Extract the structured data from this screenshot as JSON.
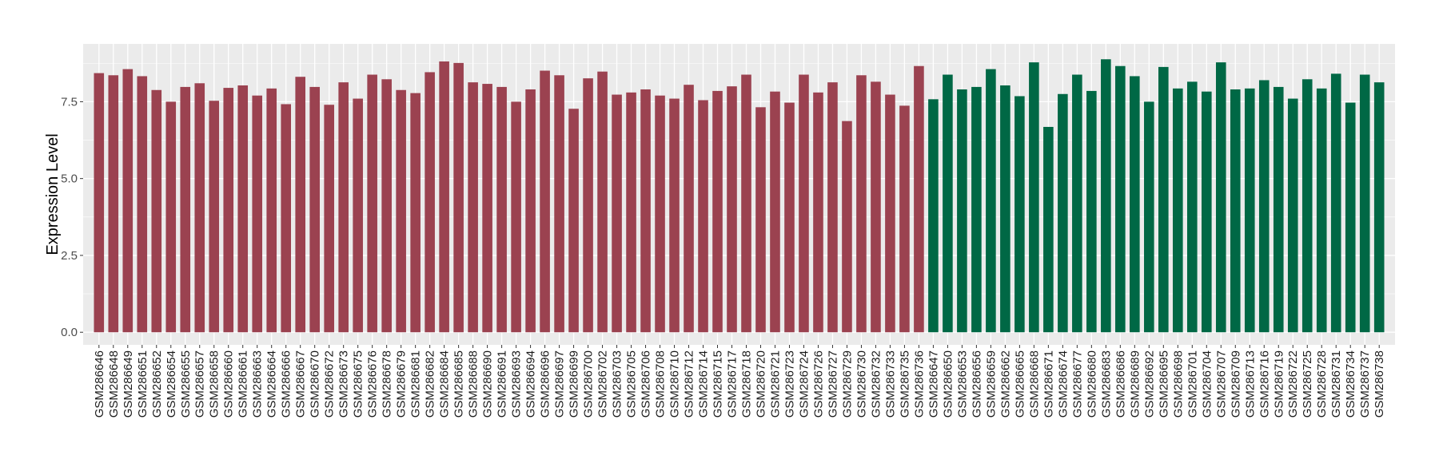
{
  "chart_data": {
    "type": "bar",
    "title": "",
    "xlabel": "",
    "ylabel": "Expression Level",
    "ylim": [
      -0.41,
      9.38
    ],
    "yticks": [
      0.0,
      2.5,
      5.0,
      7.5
    ],
    "ytick_labels": [
      "0.0",
      "2.5",
      "5.0",
      "7.5"
    ],
    "grid": true,
    "legend": "none",
    "colors": {
      "group1": "#9B4250",
      "group2": "#006845",
      "panel": "#EBEBEB",
      "grid": "#FFFFFF"
    },
    "categories": [
      "GSM286646",
      "GSM286648",
      "GSM286649",
      "GSM286651",
      "GSM286652",
      "GSM286654",
      "GSM286655",
      "GSM286657",
      "GSM286658",
      "GSM286660",
      "GSM286661",
      "GSM286663",
      "GSM286664",
      "GSM286666",
      "GSM286667",
      "GSM286670",
      "GSM286672",
      "GSM286673",
      "GSM286675",
      "GSM286676",
      "GSM286678",
      "GSM286679",
      "GSM286681",
      "GSM286682",
      "GSM286684",
      "GSM286685",
      "GSM286688",
      "GSM286690",
      "GSM286691",
      "GSM286693",
      "GSM286694",
      "GSM286696",
      "GSM286697",
      "GSM286699",
      "GSM286700",
      "GSM286702",
      "GSM286703",
      "GSM286705",
      "GSM286706",
      "GSM286708",
      "GSM286710",
      "GSM286712",
      "GSM286714",
      "GSM286715",
      "GSM286717",
      "GSM286718",
      "GSM286720",
      "GSM286721",
      "GSM286723",
      "GSM286724",
      "GSM286726",
      "GSM286727",
      "GSM286729",
      "GSM286730",
      "GSM286732",
      "GSM286733",
      "GSM286735",
      "GSM286736",
      "GSM286647",
      "GSM286650",
      "GSM286653",
      "GSM286656",
      "GSM286659",
      "GSM286662",
      "GSM286665",
      "GSM286668",
      "GSM286671",
      "GSM286674",
      "GSM286677",
      "GSM286680",
      "GSM286683",
      "GSM286686",
      "GSM286689",
      "GSM286692",
      "GSM286695",
      "GSM286698",
      "GSM286701",
      "GSM286704",
      "GSM286707",
      "GSM286709",
      "GSM286713",
      "GSM286716",
      "GSM286719",
      "GSM286722",
      "GSM286725",
      "GSM286728",
      "GSM286731",
      "GSM286734",
      "GSM286737",
      "GSM286738"
    ],
    "values": [
      8.43,
      8.36,
      8.56,
      8.33,
      7.88,
      7.5,
      7.98,
      8.1,
      7.53,
      7.95,
      8.03,
      7.7,
      7.93,
      7.42,
      8.31,
      7.98,
      7.4,
      8.13,
      7.6,
      8.38,
      8.23,
      7.88,
      7.78,
      8.46,
      8.81,
      8.76,
      8.13,
      8.08,
      7.98,
      7.5,
      7.9,
      8.51,
      8.36,
      7.27,
      8.26,
      8.48,
      7.73,
      7.8,
      7.9,
      7.7,
      7.6,
      8.05,
      7.55,
      7.85,
      8.0,
      8.38,
      7.32,
      7.83,
      7.47,
      8.38,
      7.8,
      8.13,
      6.87,
      8.36,
      8.15,
      7.73,
      7.37,
      8.66,
      7.58,
      8.38,
      7.9,
      7.98,
      8.56,
      8.03,
      7.68,
      8.78,
      6.68,
      7.75,
      8.38,
      7.85,
      8.88,
      8.66,
      8.33,
      7.5,
      8.63,
      7.93,
      8.15,
      7.83,
      8.78,
      7.9,
      7.93,
      8.2,
      7.98,
      7.6,
      8.23,
      7.93,
      8.41,
      7.47,
      8.38,
      8.13
    ],
    "groups": [
      1,
      1,
      1,
      1,
      1,
      1,
      1,
      1,
      1,
      1,
      1,
      1,
      1,
      1,
      1,
      1,
      1,
      1,
      1,
      1,
      1,
      1,
      1,
      1,
      1,
      1,
      1,
      1,
      1,
      1,
      1,
      1,
      1,
      1,
      1,
      1,
      1,
      1,
      1,
      1,
      1,
      1,
      1,
      1,
      1,
      1,
      1,
      1,
      1,
      1,
      1,
      1,
      1,
      1,
      1,
      1,
      1,
      1,
      2,
      2,
      2,
      2,
      2,
      2,
      2,
      2,
      2,
      2,
      2,
      2,
      2,
      2,
      2,
      2,
      2,
      2,
      2,
      2,
      2,
      2,
      2,
      2,
      2,
      2,
      2,
      2,
      2,
      2,
      2,
      2
    ]
  }
}
